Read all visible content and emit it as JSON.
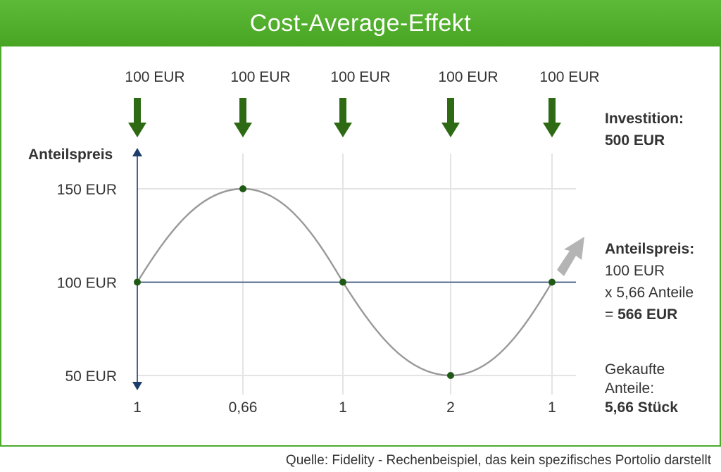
{
  "title": "Cost-Average-Effekt",
  "source": "Quelle: Fidelity - Rechenbeispiel, das kein spezifisches Portolio darstellt",
  "colors": {
    "brand_green": "#4caa2c",
    "arrow_green": "#2e6a14",
    "axis_navy": "#1c3c6c",
    "curve_gray": "#999999",
    "point_green": "#1e5a14",
    "trend_arrow_gray": "#b4b4b4"
  },
  "sidebar": {
    "investment_label": "Investition:",
    "investment_value": "500 EUR",
    "price_label": "Anteilspreis:",
    "price_value": "100 EUR",
    "shares_multiplier": "x 5,66 Anteile",
    "equals_sign": "=",
    "total_value": "566 EUR",
    "bought_label_1": "Gekaufte",
    "bought_label_2": "Anteile:",
    "bought_value": "5,66 Stück"
  },
  "chart_data": {
    "type": "line",
    "title": "",
    "ylabel": "Anteilspreis",
    "xlabel": "",
    "ylim": [
      50,
      150
    ],
    "yticks": [
      150,
      100,
      50
    ],
    "ytick_labels": [
      "150 EUR",
      "100 EUR",
      "50 EUR"
    ],
    "grid": true,
    "investment_labels": [
      "100 EUR",
      "100 EUR",
      "100 EUR",
      "100 EUR",
      "100 EUR"
    ],
    "shares_per_purchase": [
      "1",
      "0,66",
      "1",
      "2",
      "1"
    ],
    "series": [
      {
        "values": [
          100,
          150,
          100,
          50,
          100
        ]
      }
    ],
    "reference_line": 100,
    "trend_arrow": "up"
  }
}
